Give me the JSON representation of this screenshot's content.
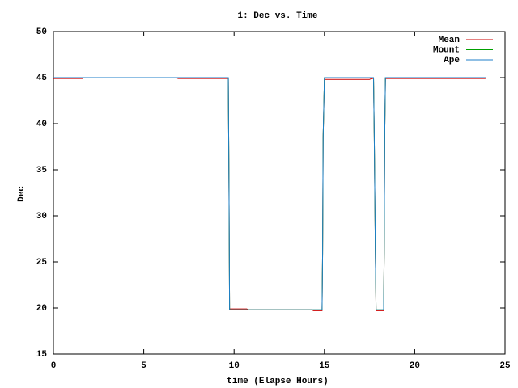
{
  "chart_data": {
    "type": "line",
    "title": "1: Dec vs. Time",
    "x_label": "time (Elapse Hours)",
    "y_label": "Dec",
    "x": [
      0,
      1.6,
      1.7,
      6.8,
      6.9,
      9.68,
      9.72,
      9.75,
      10.7,
      10.8,
      14.3,
      14.4,
      14.87,
      14.9,
      14.93,
      15.0,
      17.5,
      17.6,
      17.72,
      17.76,
      17.82,
      17.86,
      18.28,
      18.31,
      18.34,
      18.38,
      21.8,
      21.9,
      23.92
    ],
    "series": [
      {
        "name": "Mean",
        "color": "#cc0000",
        "values": [
          44.9,
          44.9,
          45,
          45,
          44.9,
          44.9,
          32.5,
          19.9,
          19.9,
          19.8,
          19.8,
          19.7,
          19.7,
          26,
          38.5,
          44.8,
          44.8,
          44.9,
          44.9,
          38.7,
          26.1,
          19.7,
          19.7,
          26,
          38.7,
          44.9,
          44.9,
          44.9,
          44.9
        ]
      },
      {
        "name": "Mount",
        "color": "#00a000",
        "values": [
          45,
          45,
          45,
          45,
          45,
          45,
          32.5,
          19.8,
          19.8,
          19.8,
          19.8,
          19.8,
          19.8,
          26,
          38.5,
          45,
          45,
          45,
          45,
          38.7,
          26.1,
          19.8,
          19.8,
          26,
          38.7,
          45,
          45,
          45,
          45
        ]
      },
      {
        "name": "Ape",
        "color": "#1f7fc8",
        "values": [
          45,
          45,
          45,
          45,
          45,
          45,
          32.5,
          19.8,
          19.8,
          19.8,
          19.8,
          19.8,
          19.8,
          26,
          38.5,
          45,
          45,
          45,
          45,
          38.7,
          26.1,
          19.8,
          19.8,
          26,
          38.7,
          45,
          45,
          45,
          45
        ]
      }
    ],
    "xlim": [
      0,
      25
    ],
    "xticks": [
      0,
      5,
      10,
      15,
      20,
      25
    ],
    "ylim": [
      15,
      50
    ],
    "yticks": [
      15,
      20,
      25,
      30,
      35,
      40,
      45,
      50
    ],
    "legend": "top-right"
  }
}
